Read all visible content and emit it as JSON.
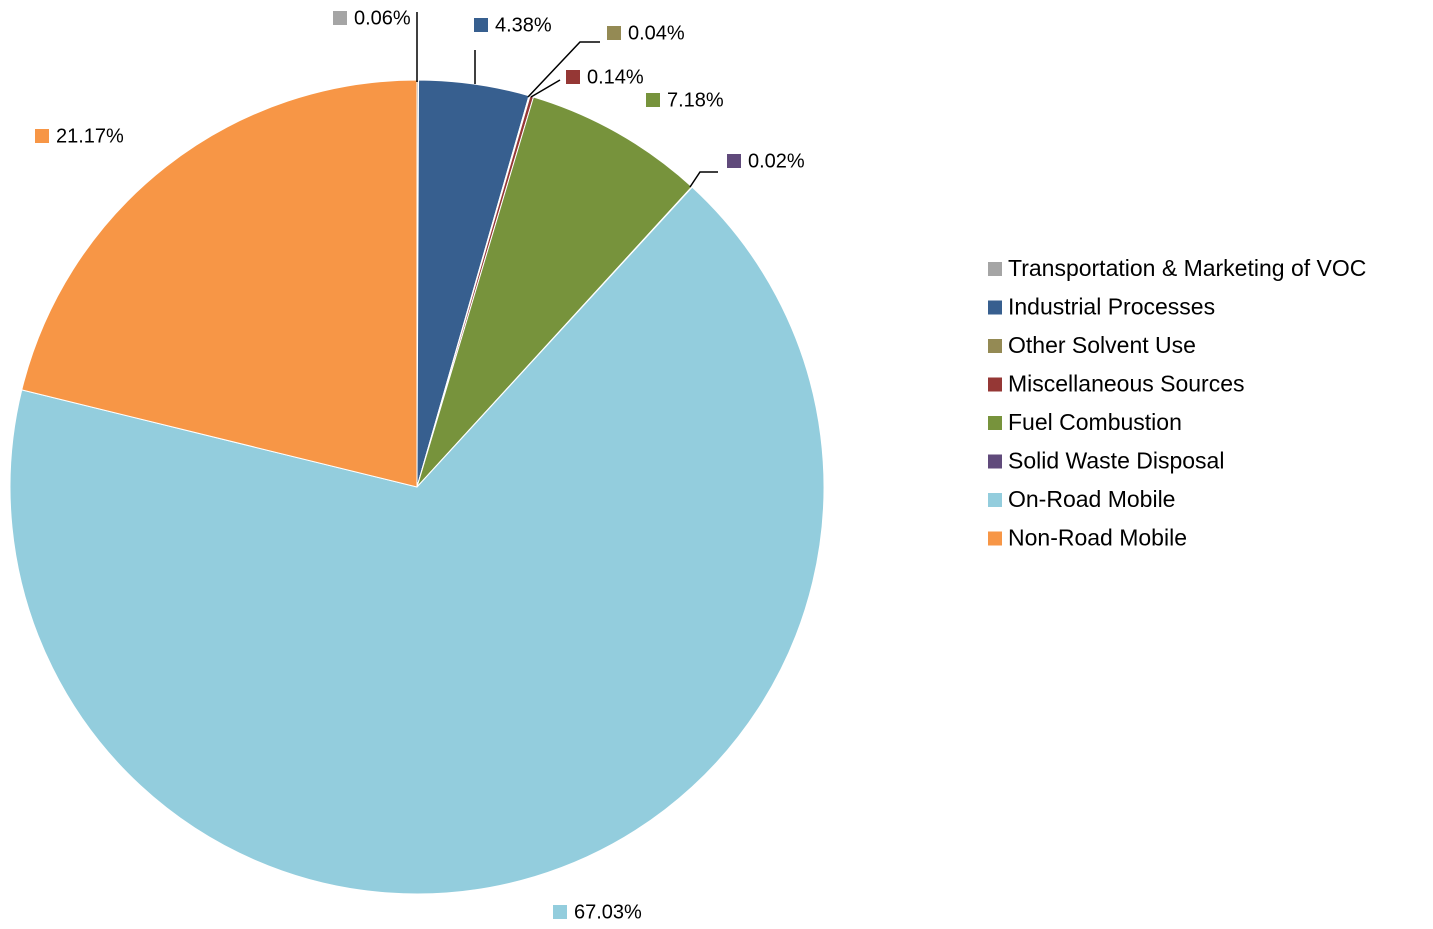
{
  "chart_data": {
    "type": "pie",
    "categories": [
      "Transportation & Marketing of VOC",
      "Industrial Processes",
      "Other Solvent Use",
      "Miscellaneous Sources",
      "Fuel Combustion",
      "Solid Waste Disposal",
      "On-Road Mobile",
      "Non-Road Mobile"
    ],
    "values": [
      0.06,
      4.38,
      0.04,
      0.14,
      7.18,
      0.02,
      67.03,
      21.17
    ],
    "value_labels": [
      "0.06%",
      "4.38%",
      "0.04%",
      "0.14%",
      "7.18%",
      "0.02%",
      "67.03%",
      "21.17%"
    ],
    "colors": [
      "#a5a5a5",
      "#375f8f",
      "#948a54",
      "#953735",
      "#77933c",
      "#604a7b",
      "#93cddd",
      "#f79646"
    ],
    "legend": "right"
  }
}
